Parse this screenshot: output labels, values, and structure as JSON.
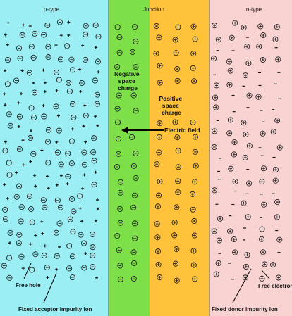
{
  "regions": {
    "p": {
      "label": "p-type",
      "color": "#9aeef4"
    },
    "junction": {
      "label": "Junction",
      "neg_color": "#7ee048",
      "pos_color": "#ffc23a"
    },
    "n": {
      "label": "n-type",
      "color": "#f9d2d2"
    }
  },
  "labels": {
    "negative_space_charge": [
      "Negative",
      "space",
      "charge"
    ],
    "positive_space_charge": [
      "Positive",
      "space",
      "charge"
    ],
    "electric_field": "Electric field",
    "free_hole": "Free hole",
    "fixed_acceptor": "Fixed acceptor impurity ion",
    "free_electron": "Free electron",
    "fixed_donor": "Fixed donor impurity ion"
  },
  "symbols": {
    "acceptor_ion": "⊖",
    "donor_ion": "⊕",
    "hole": "+",
    "electron": "−"
  },
  "colors": {
    "ink": "#111111",
    "border": "#333333",
    "arrow": "#000000"
  }
}
